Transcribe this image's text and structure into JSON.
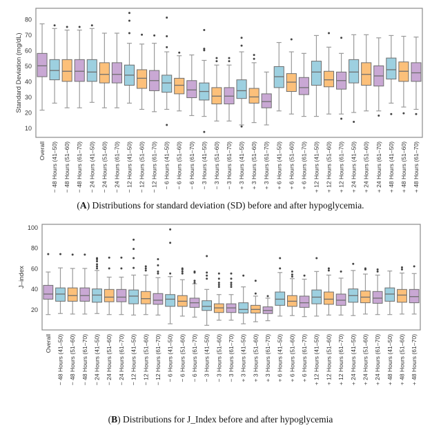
{
  "colors": {
    "purple": "#c9a8d4",
    "blue": "#9dd0e0",
    "orange": "#fcc07a",
    "edge": "#6e6e6e",
    "whisker": "#9a9a9a",
    "frame": "#8a8a8a",
    "outlier": "#444444"
  },
  "captions": {
    "a_label": "A",
    "a_text": " Distributions for standard deviation (SD) before and after hypoglycemia.",
    "b_label": "B",
    "b_text": " Distributions for J_Index before and after hypoglycemia"
  },
  "chart_data": [
    {
      "type": "box",
      "title": "",
      "xlabel": "",
      "ylabel": "Standard Deviation (mg/dL)",
      "ylim": [
        4,
        87
      ],
      "yticks": [
        10,
        20,
        30,
        40,
        50,
        60,
        70,
        80
      ],
      "grid": false,
      "categories": [
        "Overall",
        "− 48 Hours (41–50)",
        "− 48 Hours (51–60)",
        "− 48 Hours (61–70)",
        "− 24 Hours (41–50)",
        "− 24 Hours (51–60)",
        "− 24 Hours (61–70)",
        "− 12 Hours (41–50)",
        "− 12 Hours (51–60)",
        "− 12 Hours (61–70)",
        "− 6 Hours (41–50)",
        "− 6 Hours (51–60)",
        "− 6 Hours (61–70)",
        "− 3 Hours (41–50)",
        "− 3 Hours (51–60)",
        "− 3 Hours (61–70)",
        "+ 3 Hours (41–50)",
        "+ 3 Hours (51–60)",
        "+ 3 Hours (61–70)",
        "+ 6 Hours (41–50)",
        "+ 6 Hours (51–60)",
        "+ 6 Hours (61–70)",
        "+ 12 Hours (41–50)",
        "+ 12 Hours (51–60)",
        "+ 12 Hours (61–70)",
        "+ 24 Hours (41–50)",
        "+ 24 Hours (51–60)",
        "+ 24 Hours (61–70)",
        "+ 48 Hours (41–50)",
        "+ 48 Hours (51–60)",
        "+ 48 Hours (61–70)"
      ],
      "colors": [
        "purple",
        "blue",
        "orange",
        "purple",
        "blue",
        "orange",
        "purple",
        "blue",
        "orange",
        "purple",
        "blue",
        "orange",
        "purple",
        "blue",
        "orange",
        "purple",
        "blue",
        "orange",
        "purple",
        "blue",
        "orange",
        "purple",
        "blue",
        "orange",
        "purple",
        "blue",
        "orange",
        "purple",
        "blue",
        "orange",
        "purple"
      ],
      "boxes": [
        {
          "min": 21.5,
          "q1": 43,
          "median": 50,
          "q3": 58,
          "max": 77,
          "outliers": []
        },
        {
          "min": 26,
          "q1": 41,
          "median": 47,
          "q3": 54,
          "max": 74,
          "outliers": [
            76
          ]
        },
        {
          "min": 23,
          "q1": 40,
          "median": 46.5,
          "q3": 54,
          "max": 73,
          "outliers": [
            75
          ]
        },
        {
          "min": 23,
          "q1": 40,
          "median": 46.5,
          "q3": 54,
          "max": 73,
          "outliers": [
            75
          ]
        },
        {
          "min": 26.5,
          "q1": 40,
          "median": 46,
          "q3": 54,
          "max": 74,
          "outliers": [
            76
          ]
        },
        {
          "min": 23,
          "q1": 39,
          "median": 44.5,
          "q3": 52,
          "max": 71,
          "outliers": []
        },
        {
          "min": 23,
          "q1": 39,
          "median": 44.5,
          "q3": 52,
          "max": 71,
          "outliers": []
        },
        {
          "min": 26,
          "q1": 37.5,
          "median": 44,
          "q3": 50.5,
          "max": 64.5,
          "outliers": [
            71,
            79,
            84
          ]
        },
        {
          "min": 22,
          "q1": 35.5,
          "median": 42,
          "q3": 47.5,
          "max": 64,
          "outliers": [
            70
          ]
        },
        {
          "min": 20.5,
          "q1": 34,
          "median": 40.5,
          "q3": 47,
          "max": 64.5,
          "outliers": [
            69.5
          ]
        },
        {
          "min": 22,
          "q1": 33,
          "median": 39,
          "q3": 44,
          "max": 59,
          "outliers": [
            62,
            69,
            81,
            12
          ]
        },
        {
          "min": 21,
          "q1": 32,
          "median": 37.5,
          "q3": 42,
          "max": 56.5,
          "outliers": [
            58.5
          ]
        },
        {
          "min": 18,
          "q1": 29.5,
          "median": 34.5,
          "q3": 40.5,
          "max": 57,
          "outliers": []
        },
        {
          "min": 17.5,
          "q1": 28,
          "median": 33.5,
          "q3": 39,
          "max": 53.5,
          "outliers": [
            60,
            61,
            73,
            7.5
          ]
        },
        {
          "min": 14.5,
          "q1": 25.5,
          "median": 30.5,
          "q3": 36,
          "max": 50.5,
          "outliers": [
            53,
            55
          ]
        },
        {
          "min": 14.5,
          "q1": 25.5,
          "median": 30.5,
          "q3": 36,
          "max": 50.5,
          "outliers": [
            53,
            55
          ]
        },
        {
          "min": 12,
          "q1": 29,
          "median": 34,
          "q3": 41,
          "max": 59,
          "outliers": [
            63,
            68,
            11
          ]
        },
        {
          "min": 13.5,
          "q1": 26,
          "median": 30,
          "q3": 35.5,
          "max": 52,
          "outliers": [
            54.5,
            57
          ]
        },
        {
          "min": 12,
          "q1": 23,
          "median": 27,
          "q3": 32,
          "max": 46,
          "outliers": []
        },
        {
          "min": 21,
          "q1": 36,
          "median": 43,
          "q3": 49.5,
          "max": 65,
          "outliers": []
        },
        {
          "min": 19,
          "q1": 33.5,
          "median": 39.5,
          "q3": 45,
          "max": 59,
          "outliers": [
            67
          ]
        },
        {
          "min": 17.5,
          "q1": 31.5,
          "median": 36,
          "q3": 42.5,
          "max": 58,
          "outliers": []
        },
        {
          "min": 17.5,
          "q1": 37.5,
          "median": 46,
          "q3": 53,
          "max": 69.5,
          "outliers": []
        },
        {
          "min": 19,
          "q1": 36.5,
          "median": 41,
          "q3": 46.5,
          "max": 62,
          "outliers": [
            71
          ]
        },
        {
          "min": 19,
          "q1": 35,
          "median": 40.5,
          "q3": 46,
          "max": 58,
          "outliers": [
            68,
            16
          ]
        },
        {
          "min": 20,
          "q1": 39,
          "median": 46,
          "q3": 54,
          "max": 70,
          "outliers": [
            14
          ]
        },
        {
          "min": 21,
          "q1": 37.5,
          "median": 44.5,
          "q3": 52,
          "max": 70,
          "outliers": []
        },
        {
          "min": 21,
          "q1": 37,
          "median": 43.5,
          "q3": 50,
          "max": 68,
          "outliers": [
            18
          ]
        },
        {
          "min": 26,
          "q1": 41.5,
          "median": 47.5,
          "q3": 55,
          "max": 69.5,
          "outliers": [
            19
          ]
        },
        {
          "min": 23.5,
          "q1": 40,
          "median": 46.5,
          "q3": 52.5,
          "max": 69,
          "outliers": [
            19.5
          ]
        },
        {
          "min": 22,
          "q1": 40,
          "median": 45.5,
          "q3": 52,
          "max": 68.5,
          "outliers": [
            19
          ]
        }
      ]
    },
    {
      "type": "box",
      "title": "",
      "xlabel": "",
      "ylabel": "J–index",
      "ylim": [
        0,
        103
      ],
      "yticks": [
        20,
        40,
        60,
        80,
        100
      ],
      "grid": false,
      "categories": [
        "Overall",
        "− 48 Hours (41–50)",
        "− 48 Hours (51–60)",
        "− 48 Hours (61–70)",
        "− 24 Hours (41–50)",
        "− 24 Hours (51–60)",
        "− 24 Hours (61–70)",
        "− 12 Hours (41–50)",
        "− 12 Hours (51–60)",
        "− 12 Hours (61–70)",
        "− 6 Hours (41–50)",
        "− 6 Hours (51–60)",
        "− 6 Hours (61–70)",
        "− 3 Hours (41–50)",
        "− 3 Hours (51–60)",
        "− 3 Hours (61–70)",
        "+ 3 Hours (41–50)",
        "+ 3 Hours (51–60)",
        "+ 3 Hours (61–70)",
        "+ 6 Hours (41–50)",
        "+ 6 Hours (51–60)",
        "+ 6 Hours (61–70)",
        "+ 12 Hours (41–50)",
        "+ 12 Hours (51–60)",
        "+ 12 Hours (61–70)",
        "+ 24 Hours (41–50)",
        "+ 24 Hours (51–60)",
        "+ 24 Hours (61–70)",
        "+ 48 Hours (41–50)",
        "+ 48 Hours (51–60)",
        "+ 48 Hours (61–70)"
      ],
      "colors": [
        "purple",
        "blue",
        "orange",
        "purple",
        "blue",
        "orange",
        "purple",
        "blue",
        "orange",
        "purple",
        "blue",
        "orange",
        "purple",
        "blue",
        "orange",
        "purple",
        "blue",
        "orange",
        "purple",
        "blue",
        "orange",
        "purple",
        "blue",
        "orange",
        "purple",
        "blue",
        "orange",
        "purple",
        "blue",
        "orange",
        "purple"
      ],
      "boxes": [
        {
          "min": 15,
          "q1": 30,
          "median": 35,
          "q3": 43.5,
          "max": 56.5,
          "outliers": [
            74
          ]
        },
        {
          "min": 16,
          "q1": 28,
          "median": 35,
          "q3": 41,
          "max": 60.5,
          "outliers": [
            74
          ]
        },
        {
          "min": 15.5,
          "q1": 28,
          "median": 33.5,
          "q3": 41,
          "max": 60,
          "outliers": [
            73.5
          ]
        },
        {
          "min": 15.5,
          "q1": 28,
          "median": 33.5,
          "q3": 41,
          "max": 60,
          "outliers": [
            73.5
          ]
        },
        {
          "min": 16,
          "q1": 27,
          "median": 34,
          "q3": 40,
          "max": 58,
          "outliers": [
            60,
            62,
            64,
            67,
            69,
            70
          ]
        },
        {
          "min": 15,
          "q1": 27.5,
          "median": 32,
          "q3": 39.5,
          "max": 51.5,
          "outliers": [
            60,
            70.5
          ]
        },
        {
          "min": 15,
          "q1": 27.5,
          "median": 32,
          "q3": 39.5,
          "max": 51.5,
          "outliers": [
            60,
            70.5
          ]
        },
        {
          "min": 14.5,
          "q1": 25.5,
          "median": 33,
          "q3": 39,
          "max": 53.5,
          "outliers": [
            60.5,
            70,
            79,
            88
          ]
        },
        {
          "min": 15,
          "q1": 25.5,
          "median": 30.5,
          "q3": 37.5,
          "max": 53.5,
          "outliers": [
            58,
            60,
            62
          ]
        },
        {
          "min": 14.5,
          "q1": 25,
          "median": 29,
          "q3": 35.5,
          "max": 51,
          "outliers": [
            55,
            57,
            63,
            69
          ]
        },
        {
          "min": 6,
          "q1": 23,
          "median": 30,
          "q3": 34.5,
          "max": 52,
          "outliers": [
            55,
            85,
            98
          ]
        },
        {
          "min": 13.5,
          "q1": 23,
          "median": 28,
          "q3": 33.5,
          "max": 49,
          "outliers": [
            55,
            57,
            59,
            60
          ]
        },
        {
          "min": 12.5,
          "q1": 22,
          "median": 26.5,
          "q3": 31,
          "max": 45,
          "outliers": [
            46,
            48,
            56,
            57
          ]
        },
        {
          "min": 4.5,
          "q1": 19,
          "median": 23,
          "q3": 28.5,
          "max": 39.5,
          "outliers": [
            50,
            53,
            56,
            72
          ]
        },
        {
          "min": 9.5,
          "q1": 17,
          "median": 21.5,
          "q3": 25.5,
          "max": 34.5,
          "outliers": [
            42,
            44,
            46,
            50,
            55
          ]
        },
        {
          "min": 9.5,
          "q1": 17,
          "median": 21.5,
          "q3": 25.5,
          "max": 34.5,
          "outliers": [
            42,
            44,
            46,
            50,
            55
          ]
        },
        {
          "min": 6,
          "q1": 16.5,
          "median": 20,
          "q3": 26.5,
          "max": 42,
          "outliers": [
            53
          ]
        },
        {
          "min": 8,
          "q1": 16.5,
          "median": 20,
          "q3": 24,
          "max": 33,
          "outliers": [
            35.5,
            48
          ]
        },
        {
          "min": 9,
          "q1": 16,
          "median": 19,
          "q3": 22.5,
          "max": 31,
          "outliers": [
            33
          ]
        },
        {
          "min": 13.5,
          "q1": 24,
          "median": 30,
          "q3": 37,
          "max": 56,
          "outliers": [
            60,
            70
          ]
        },
        {
          "min": 14,
          "q1": 23,
          "median": 28,
          "q3": 33.5,
          "max": 50,
          "outliers": [
            52,
            54,
            57
          ]
        },
        {
          "min": 13,
          "q1": 22,
          "median": 26.5,
          "q3": 33,
          "max": 49.5,
          "outliers": [
            53
          ]
        },
        {
          "min": 13.5,
          "q1": 25.5,
          "median": 32,
          "q3": 39,
          "max": 57,
          "outliers": [
            70
          ]
        },
        {
          "min": 14.5,
          "q1": 25,
          "median": 30,
          "q3": 37,
          "max": 53.5,
          "outliers": [
            58,
            60
          ]
        },
        {
          "min": 14.5,
          "q1": 24,
          "median": 29,
          "q3": 35,
          "max": 50.5,
          "outliers": [
            57
          ]
        },
        {
          "min": 14,
          "q1": 27,
          "median": 33.5,
          "q3": 40,
          "max": 58,
          "outliers": [
            64.5
          ]
        },
        {
          "min": 15.5,
          "q1": 26.5,
          "median": 32,
          "q3": 38,
          "max": 54.5,
          "outliers": [
            59,
            60
          ]
        },
        {
          "min": 15,
          "q1": 26,
          "median": 31,
          "q3": 37.5,
          "max": 53.5,
          "outliers": [
            57,
            59
          ]
        },
        {
          "min": 15,
          "q1": 28,
          "median": 35,
          "q3": 41,
          "max": 57.5,
          "outliers": []
        },
        {
          "min": 15.5,
          "q1": 27,
          "median": 34,
          "q3": 39.5,
          "max": 55.5,
          "outliers": [
            59,
            61
          ]
        },
        {
          "min": 15.5,
          "q1": 26.5,
          "median": 32.5,
          "q3": 39.5,
          "max": 55,
          "outliers": [
            62
          ]
        }
      ]
    }
  ]
}
